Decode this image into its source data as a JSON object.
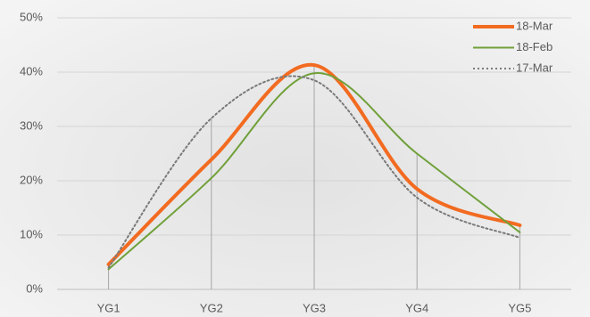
{
  "chart_data": {
    "type": "line",
    "smooth": true,
    "categories": [
      "YG1",
      "YG2",
      "YG3",
      "YG4",
      "YG5"
    ],
    "series": [
      {
        "name": "18-Mar",
        "color": "#f26b21",
        "dash": "solid",
        "width": 4,
        "values": [
          4.6,
          23.9,
          41.3,
          18.5,
          11.8
        ]
      },
      {
        "name": "18-Feb",
        "color": "#70a03a",
        "dash": "solid",
        "width": 2,
        "values": [
          3.7,
          20.5,
          39.8,
          25,
          10.5
        ]
      },
      {
        "name": "17-Mar",
        "color": "#7a7a7a",
        "dash": "dotted",
        "width": 2,
        "values": [
          4,
          31.5,
          38.5,
          16.9,
          9.5
        ]
      }
    ],
    "ylim": [
      0,
      50
    ],
    "yticks": [
      {
        "value": 0,
        "label": "0%"
      },
      {
        "value": 10,
        "label": "10%"
      },
      {
        "value": 20,
        "label": "20%"
      },
      {
        "value": 30,
        "label": "30%"
      },
      {
        "value": 40,
        "label": "40%"
      },
      {
        "value": 50,
        "label": "50%"
      }
    ],
    "grid": true,
    "drop_lines": true,
    "legend": "upper-right"
  }
}
